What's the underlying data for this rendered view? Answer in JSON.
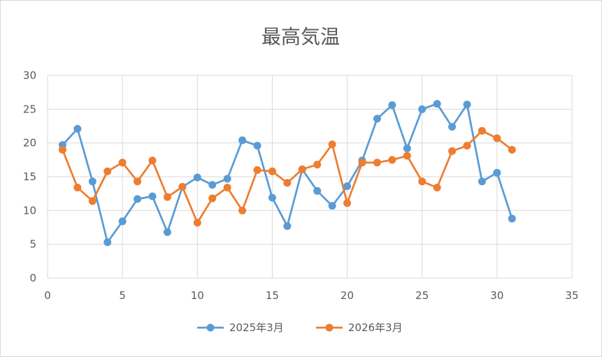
{
  "chart_data": {
    "type": "line",
    "title": "最高気温",
    "xlabel": "",
    "ylabel": "",
    "xlim": [
      0,
      35
    ],
    "ylim": [
      0,
      30
    ],
    "x_ticks": [
      0,
      5,
      10,
      15,
      20,
      25,
      30,
      35
    ],
    "y_ticks": [
      0,
      5,
      10,
      15,
      20,
      25,
      30
    ],
    "grid": true,
    "legend_position": "bottom",
    "x": [
      1,
      2,
      3,
      4,
      5,
      6,
      7,
      8,
      9,
      10,
      11,
      12,
      13,
      14,
      15,
      16,
      17,
      18,
      19,
      20,
      21,
      22,
      23,
      24,
      25,
      26,
      27,
      28,
      29,
      30,
      31
    ],
    "series": [
      {
        "name": "2025年3月",
        "color": "#5b9bd5",
        "values": [
          19.7,
          22.1,
          14.3,
          5.3,
          8.4,
          11.7,
          12.1,
          6.8,
          13.5,
          14.9,
          13.8,
          14.7,
          20.4,
          19.6,
          11.9,
          7.7,
          16.1,
          12.9,
          10.7,
          13.6,
          17.4,
          23.6,
          25.6,
          19.2,
          25.0,
          25.8,
          22.4,
          25.7,
          14.3,
          15.6,
          8.8
        ]
      },
      {
        "name": "2026年3月",
        "color": "#ed7d31",
        "values": [
          19.0,
          13.4,
          11.4,
          15.8,
          17.1,
          14.3,
          17.4,
          12.0,
          13.5,
          8.2,
          11.8,
          13.4,
          10.0,
          16.0,
          15.8,
          14.1,
          16.1,
          16.8,
          19.8,
          11.1,
          17.1,
          17.1,
          17.5,
          18.1,
          14.3,
          13.4,
          18.8,
          19.6,
          21.8,
          20.7,
          19.0
        ]
      }
    ]
  }
}
